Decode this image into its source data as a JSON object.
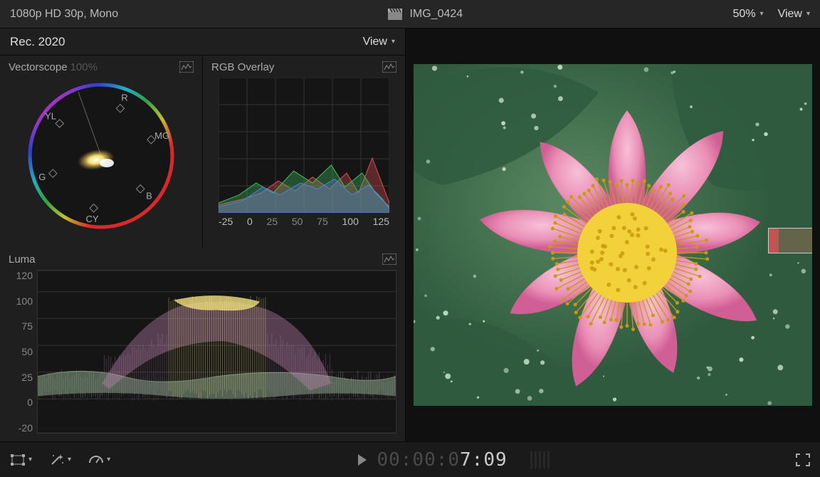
{
  "top": {
    "format": "1080p HD 30p, Mono",
    "clip_name": "IMG_0424",
    "zoom": "50%",
    "view_label": "View"
  },
  "scopes": {
    "colorspace": "Rec. 2020",
    "view_label": "View",
    "vectorscope": {
      "title": "Vectorscope",
      "percent": "100%",
      "ring_colors": {
        "R": "#d82a2a",
        "MG": "#d030c0",
        "B": "#3040d0",
        "CY": "#20b0c0",
        "G": "#30a040",
        "YL": "#c0c030"
      },
      "targets": [
        {
          "label": "R",
          "angle": -68,
          "r": 72
        },
        {
          "label": "MG",
          "angle": -18,
          "r": 74
        },
        {
          "label": "B",
          "angle": 40,
          "r": 72
        },
        {
          "label": "CY",
          "angle": 98,
          "r": 74
        },
        {
          "label": "G",
          "angle": 160,
          "r": 72
        },
        {
          "label": "YL",
          "angle": 218,
          "r": 74
        }
      ],
      "label_color": "#aaa",
      "bg": "#151515"
    },
    "rgb_overlay": {
      "title": "RGB Overlay",
      "grid_color": "#333",
      "bg": "#151515",
      "ticks": [
        "-25",
        "0",
        "25",
        "50",
        "75",
        "100",
        "125"
      ],
      "series": {
        "r": {
          "color": "#e05050",
          "points": [
            [
              0,
              8
            ],
            [
              15,
              14
            ],
            [
              25,
              20
            ],
            [
              35,
              32
            ],
            [
              45,
              22
            ],
            [
              55,
              36
            ],
            [
              65,
              24
            ],
            [
              75,
              40
            ],
            [
              82,
              20
            ],
            [
              90,
              55
            ],
            [
              100,
              10
            ]
          ]
        },
        "g": {
          "color": "#40c060",
          "points": [
            [
              0,
              10
            ],
            [
              12,
              18
            ],
            [
              22,
              30
            ],
            [
              32,
              20
            ],
            [
              44,
              42
            ],
            [
              55,
              30
            ],
            [
              66,
              48
            ],
            [
              74,
              26
            ],
            [
              84,
              40
            ],
            [
              92,
              20
            ],
            [
              100,
              6
            ]
          ]
        },
        "b": {
          "color": "#5080e0",
          "points": [
            [
              0,
              6
            ],
            [
              14,
              12
            ],
            [
              26,
              26
            ],
            [
              36,
              18
            ],
            [
              48,
              30
            ],
            [
              58,
              24
            ],
            [
              68,
              34
            ],
            [
              78,
              18
            ],
            [
              88,
              28
            ],
            [
              96,
              14
            ],
            [
              100,
              4
            ]
          ]
        }
      }
    },
    "luma": {
      "title": "Luma",
      "yticks": [
        "120",
        "100",
        "75",
        "50",
        "25",
        "0",
        "-20"
      ],
      "grid_color": "#333",
      "bg": "#151515",
      "waveform_colors": {
        "hi": "#f0e080",
        "mid": "#d090c0",
        "low": "#a0c0a0",
        "base": "#6a6a6a"
      }
    }
  },
  "viewer": {
    "flower": {
      "petal_color_light": "#f7c1d6",
      "petal_color_mid": "#ea8fb6",
      "petal_color_dark": "#d05f95",
      "center_color": "#f3d13a",
      "stamen_color": "#c99a10",
      "leaf_color_light": "#5a8a62",
      "leaf_color_dark": "#2f5a3e",
      "water_drop": "#cde8d0"
    }
  },
  "bottom": {
    "timecode_dim": "00:00:0",
    "timecode_lit": "7:09"
  }
}
